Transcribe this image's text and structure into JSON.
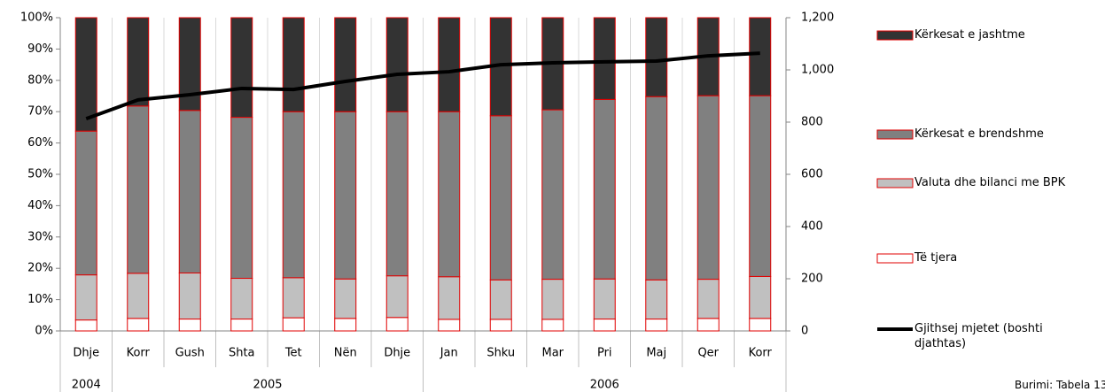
{
  "chart_data": {
    "type": "bar",
    "stacked": true,
    "categories": [
      "Dhje",
      "Korr",
      "Gush",
      "Shta",
      "Tet",
      "Nën",
      "Dhje",
      "Jan",
      "Shku",
      "Mar",
      "Pri",
      "Maj",
      "Qer",
      "Korr"
    ],
    "groups": [
      {
        "label": "2004",
        "start": 0,
        "end": 0
      },
      {
        "label": "2005",
        "start": 1,
        "end": 6
      },
      {
        "label": "2006",
        "start": 7,
        "end": 13
      }
    ],
    "series": [
      {
        "name": "Të tjera",
        "color": "#ffffff",
        "values": [
          3.5,
          4,
          3.8,
          3.8,
          4.2,
          4,
          4.3,
          3.7,
          3.7,
          3.7,
          3.8,
          3.8,
          4,
          4
        ]
      },
      {
        "name": "Valuta dhe bilanci me BPK",
        "color": "#c0c0c0",
        "values": [
          14.4,
          14.4,
          14.7,
          13,
          12.8,
          12.6,
          13.3,
          13.6,
          12.6,
          12.8,
          12.8,
          12.5,
          12.5,
          13.4
        ]
      },
      {
        "name": "Kërkesat e brendshme",
        "color": "#808080",
        "values": [
          45.9,
          53.4,
          51.9,
          51.4,
          53,
          53.4,
          52.4,
          52.7,
          52.4,
          54.1,
          57.3,
          58.5,
          58.6,
          57.7
        ]
      },
      {
        "name": "Kërkesat e jashtme",
        "color": "#333333",
        "values": [
          36.2,
          28.2,
          29.6,
          31.8,
          30,
          30,
          30,
          30,
          31.3,
          29.4,
          26.1,
          25.2,
          24.9,
          24.9
        ]
      },
      {
        "name": "Gjithsej mjetet (boshti djathtas)",
        "color": "#000000",
        "type": "line",
        "axis": "y2",
        "values": [
          813,
          885,
          905,
          929,
          925,
          956,
          983,
          993,
          1020,
          1027,
          1031,
          1034,
          1054,
          1064
        ]
      }
    ],
    "bar_edge_color": "#e00000",
    "ylim": [
      0,
      100
    ],
    "yticks": [
      {
        "value": 0,
        "label": "0%"
      },
      {
        "value": 10,
        "label": "10%"
      },
      {
        "value": 20,
        "label": "20%"
      },
      {
        "value": 30,
        "label": "30%"
      },
      {
        "value": 40,
        "label": "40%"
      },
      {
        "value": 50,
        "label": "50%"
      },
      {
        "value": 60,
        "label": "60%"
      },
      {
        "value": 70,
        "label": "70%"
      },
      {
        "value": 80,
        "label": "80%"
      },
      {
        "value": 90,
        "label": "90%"
      },
      {
        "value": 100,
        "label": "100%"
      }
    ],
    "y2lim": [
      0,
      1200
    ],
    "y2ticks": [
      0,
      200,
      400,
      600,
      800,
      {
        "value": 1000,
        "label": "1,000"
      },
      {
        "value": 1200,
        "label": "1,200"
      }
    ],
    "grid": true,
    "legend": "right",
    "source": "Burimi: Tabela 13"
  }
}
